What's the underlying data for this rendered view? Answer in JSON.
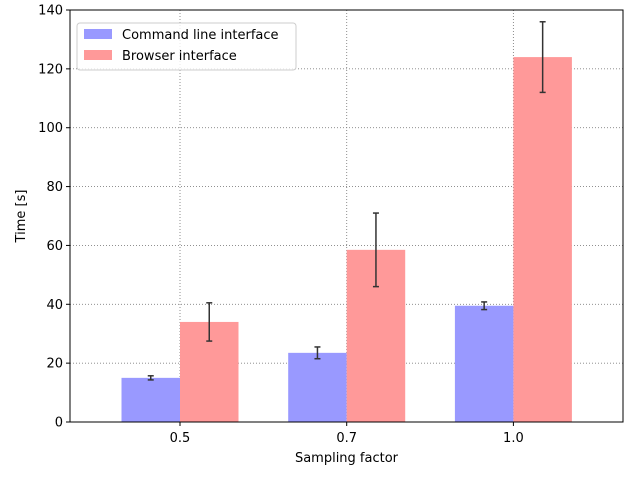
{
  "chart_data": {
    "type": "bar",
    "title": "",
    "xlabel": "Sampling factor",
    "ylabel": "Time [s]",
    "categories": [
      "0.5",
      "0.7",
      "1.0"
    ],
    "ylim": [
      0,
      140
    ],
    "yticks": [
      0,
      20,
      40,
      60,
      80,
      100,
      120,
      140
    ],
    "grid": true,
    "legend_position": "top-left",
    "series": [
      {
        "name": "Command line interface",
        "color": "#9999ff",
        "values": [
          15.0,
          23.5,
          39.5
        ],
        "errors": [
          0.7,
          2.0,
          1.3
        ]
      },
      {
        "name": "Browser interface",
        "color": "#ff9999",
        "values": [
          34.0,
          58.5,
          124.0
        ],
        "errors": [
          6.5,
          12.5,
          12.0
        ]
      }
    ]
  }
}
